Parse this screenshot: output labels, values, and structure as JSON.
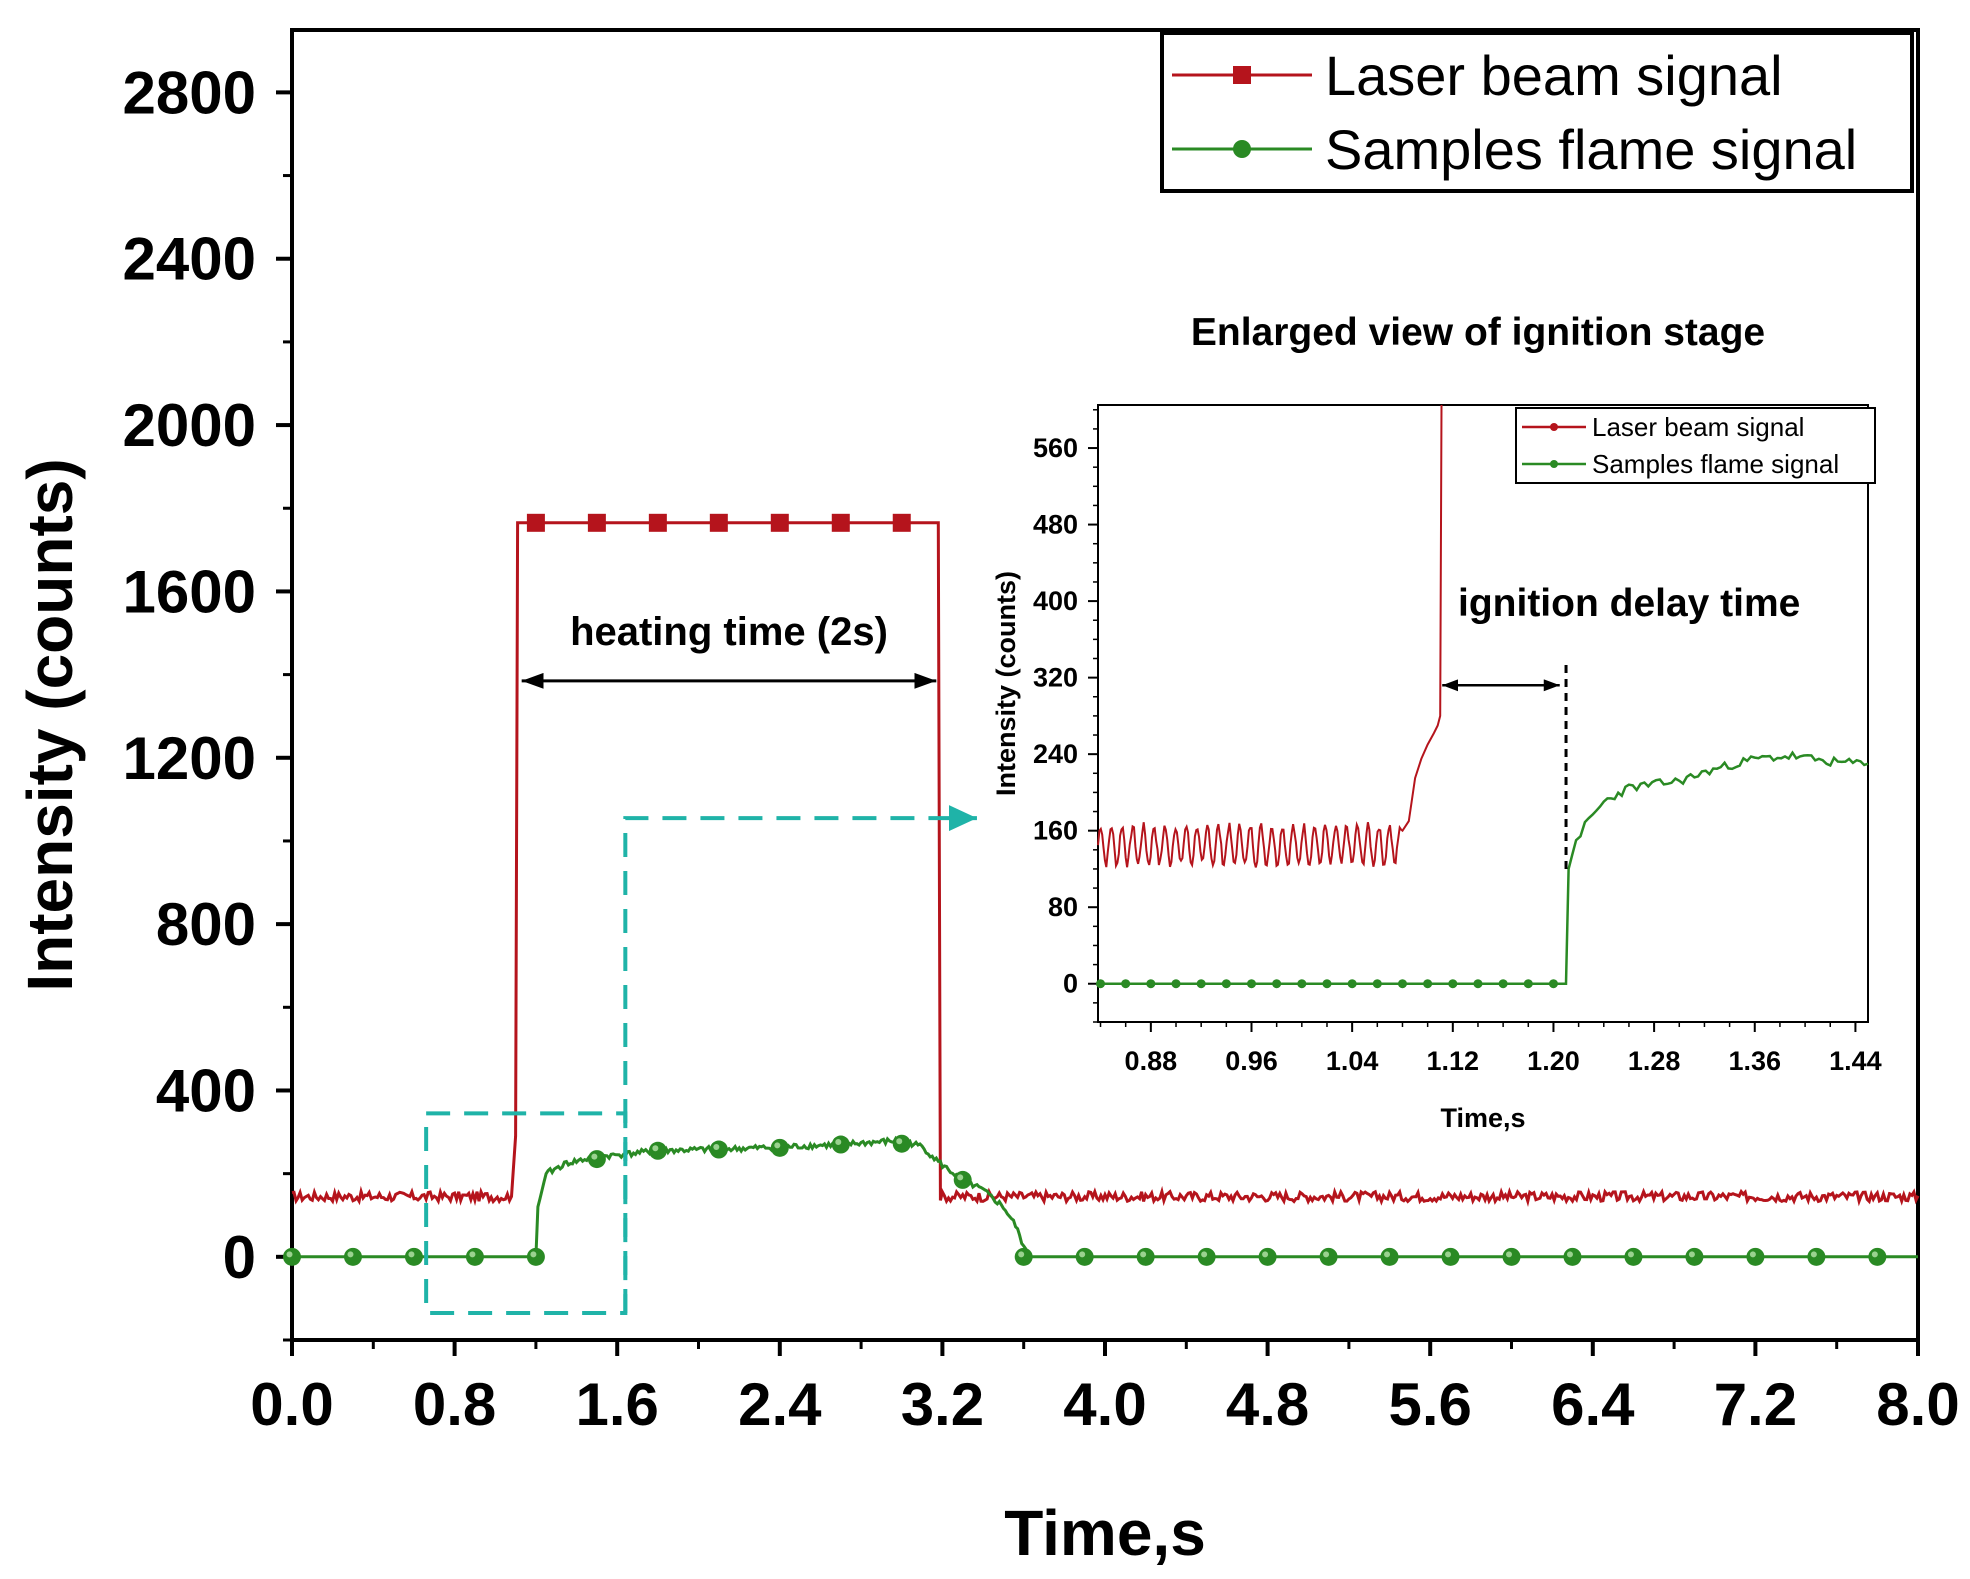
{
  "chart_data": [
    {
      "id": "main",
      "type": "line",
      "xlabel": "Time,s",
      "ylabel": "Intensity (counts)",
      "xlim": [
        0.0,
        8.0
      ],
      "ylim": [
        -200,
        2950
      ],
      "xticks": [
        "0.0",
        "0.8",
        "1.6",
        "2.4",
        "3.2",
        "4.0",
        "4.8",
        "5.6",
        "6.4",
        "7.2",
        "8.0"
      ],
      "yticks": [
        "0",
        "400",
        "800",
        "1200",
        "1600",
        "2000",
        "2400",
        "2800"
      ],
      "legend": {
        "position": "top-right",
        "entries": [
          "Laser beam signal",
          "Samples flame signal"
        ]
      },
      "series": [
        {
          "name": "Laser beam signal",
          "color": "#b5141c",
          "marker": "square",
          "baseline": 145,
          "noise": 12,
          "x": [
            0.0,
            1.08,
            1.1,
            1.11,
            3.18,
            3.19,
            8.0
          ],
          "y": [
            145,
            145,
            290,
            1765,
            1765,
            145,
            145
          ],
          "markers_x": [
            1.2,
            1.5,
            1.8,
            2.1,
            2.4,
            2.7,
            3.0
          ],
          "markers_y": [
            1765,
            1765,
            1765,
            1765,
            1765,
            1765,
            1765
          ]
        },
        {
          "name": "Samples flame signal",
          "color": "#2a8a24",
          "marker": "circle",
          "x": [
            0.0,
            1.2,
            1.21,
            1.25,
            1.35,
            1.5,
            1.8,
            2.2,
            2.7,
            3.0,
            3.1,
            3.2,
            3.3,
            3.4,
            3.5,
            3.56,
            3.6,
            3.62,
            8.0
          ],
          "y": [
            0,
            0,
            120,
            200,
            225,
            240,
            255,
            260,
            270,
            280,
            265,
            220,
            185,
            160,
            120,
            75,
            25,
            0,
            0
          ],
          "markers_x": [
            0.0,
            0.3,
            0.6,
            0.9,
            1.2,
            1.5,
            1.8,
            2.1,
            2.4,
            2.7,
            3.0,
            3.3,
            3.6,
            3.9,
            4.2,
            4.5,
            4.8,
            5.1,
            5.4,
            5.7,
            6.0,
            6.3,
            6.6,
            6.9,
            7.2,
            7.5,
            7.8
          ],
          "markers_y": [
            0,
            0,
            0,
            0,
            0,
            235,
            255,
            258,
            262,
            270,
            272,
            185,
            0,
            0,
            0,
            0,
            0,
            0,
            0,
            0,
            0,
            0,
            0,
            0,
            0,
            0,
            0
          ]
        }
      ],
      "annotations": {
        "heating_label": "heating time (2s)",
        "heating_arrow_from": 1.13,
        "heating_arrow_to": 3.17,
        "heating_arrow_y": 1385,
        "zoom_box": {
          "x": [
            0.66,
            1.64
          ],
          "y": [
            -135,
            345
          ]
        },
        "zoom_pointer_y": 1055,
        "zoom_pointer_to_x": 3.37
      }
    },
    {
      "id": "inset",
      "type": "line",
      "title": "Enlarged view of ignition stage",
      "xlabel": "Time,s",
      "ylabel": "Intensity (counts)",
      "xlim": [
        0.838,
        1.45
      ],
      "ylim": [
        -40,
        605
      ],
      "xticks": [
        "0.88",
        "0.96",
        "1.04",
        "1.12",
        "1.20",
        "1.28",
        "1.36",
        "1.44"
      ],
      "yticks": [
        "0",
        "80",
        "160",
        "240",
        "320",
        "400",
        "480",
        "560"
      ],
      "legend": {
        "position": "top-right",
        "entries": [
          "Laser beam signal",
          "Samples flame signal"
        ]
      },
      "series": [
        {
          "name": "Laser beam signal",
          "color": "#b5141c",
          "oscillation": {
            "x_start": 0.838,
            "x_end": 1.08,
            "center": 145,
            "amplitude": 20,
            "period": 0.0085
          },
          "x": [
            1.08,
            1.085,
            1.09,
            1.095,
            1.1,
            1.105,
            1.108,
            1.11,
            1.111
          ],
          "y": [
            160,
            170,
            215,
            235,
            250,
            262,
            270,
            280,
            605
          ]
        },
        {
          "name": "Samples flame signal",
          "color": "#2a8a24",
          "x": [
            0.838,
            1.21,
            1.212,
            1.218,
            1.225,
            1.24,
            1.26,
            1.3,
            1.33,
            1.36,
            1.39,
            1.42,
            1.45
          ],
          "y": [
            0,
            0,
            120,
            150,
            165,
            190,
            205,
            212,
            225,
            235,
            238,
            232,
            230
          ],
          "markers_x": [
            0.84,
            0.86,
            0.88,
            0.9,
            0.92,
            0.94,
            0.96,
            0.98,
            1.0,
            1.02,
            1.04,
            1.06,
            1.08,
            1.1,
            1.12,
            1.14,
            1.16,
            1.18,
            1.2
          ]
        }
      ],
      "annotations": {
        "ignition_label": "ignition delay  time",
        "arrow_from": 1.11,
        "arrow_to": 1.205,
        "arrow_y": 312,
        "dashed_x": 1.21,
        "dashed_y": [
          120,
          335
        ]
      }
    }
  ]
}
